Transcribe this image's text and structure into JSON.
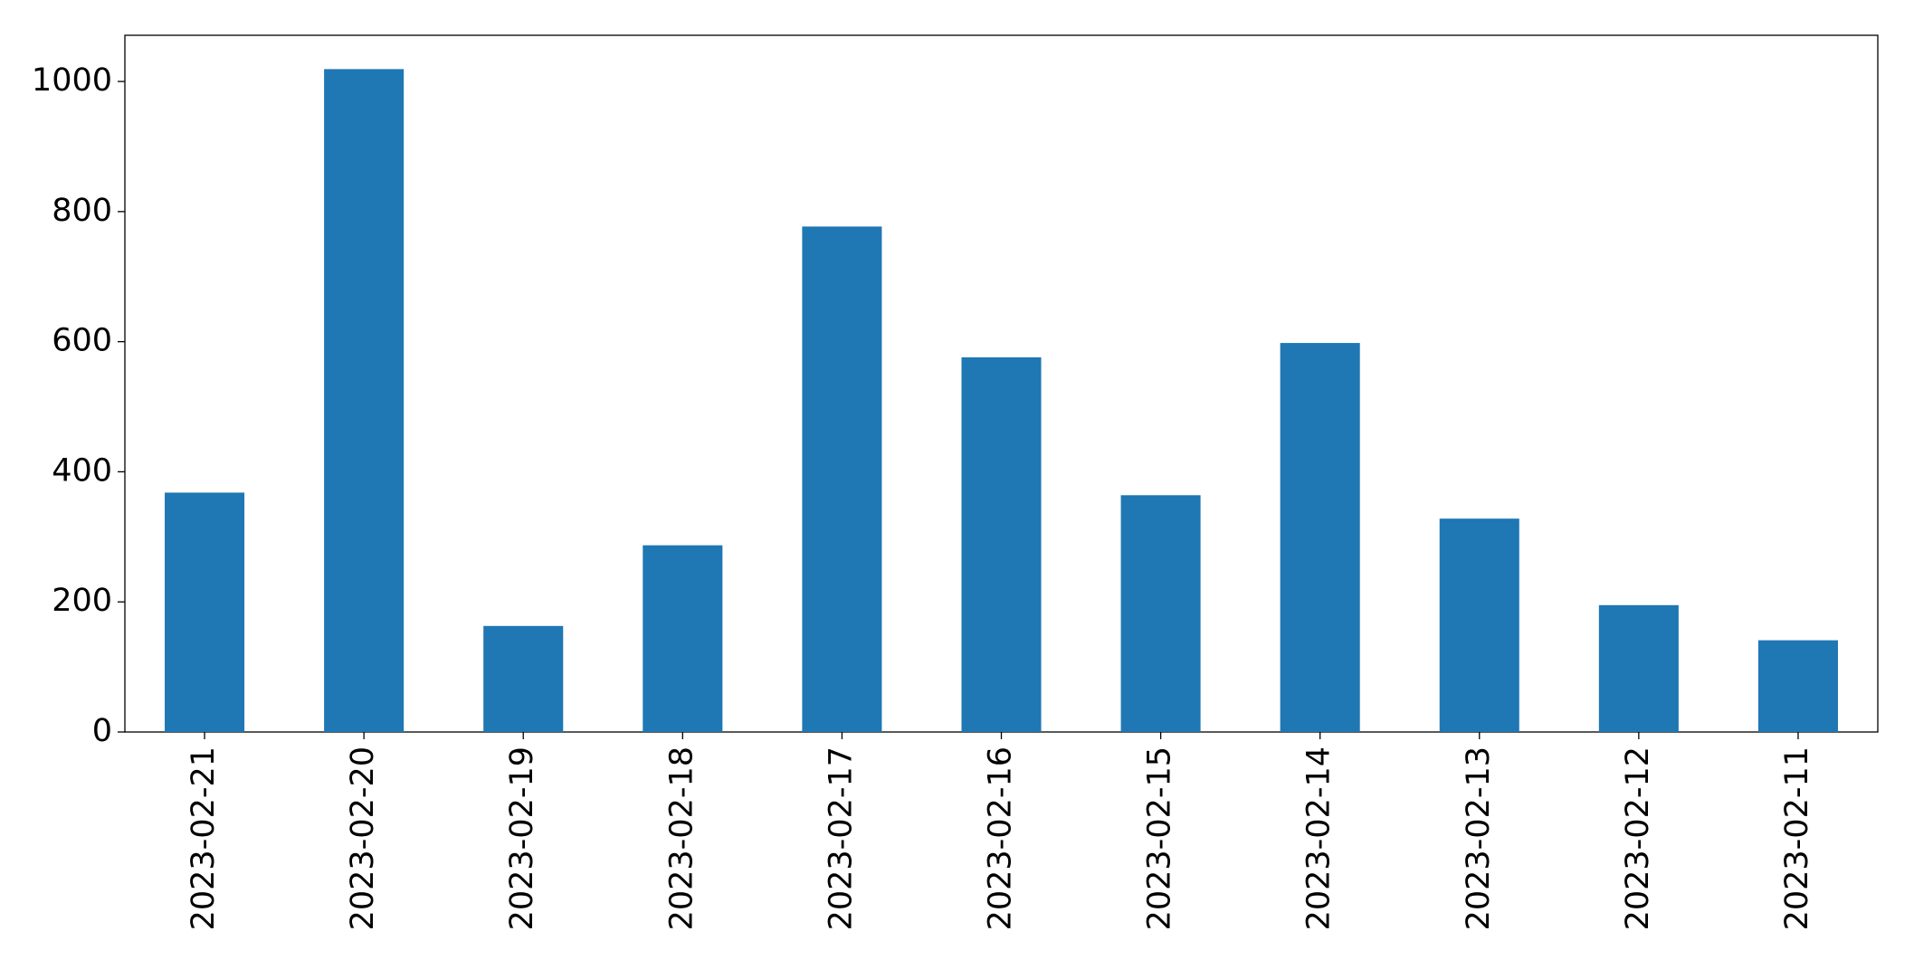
{
  "chart_data": {
    "type": "bar",
    "categories": [
      "2023-02-21",
      "2023-02-20",
      "2023-02-19",
      "2023-02-18",
      "2023-02-17",
      "2023-02-16",
      "2023-02-15",
      "2023-02-14",
      "2023-02-13",
      "2023-02-12",
      "2023-02-11"
    ],
    "values": [
      368,
      1019,
      163,
      287,
      777,
      576,
      364,
      598,
      328,
      195,
      141
    ],
    "color": "#1f77b4",
    "ylim": [
      0,
      1071
    ],
    "yticks": [
      0,
      200,
      400,
      600,
      800,
      1000
    ],
    "grid": false
  }
}
